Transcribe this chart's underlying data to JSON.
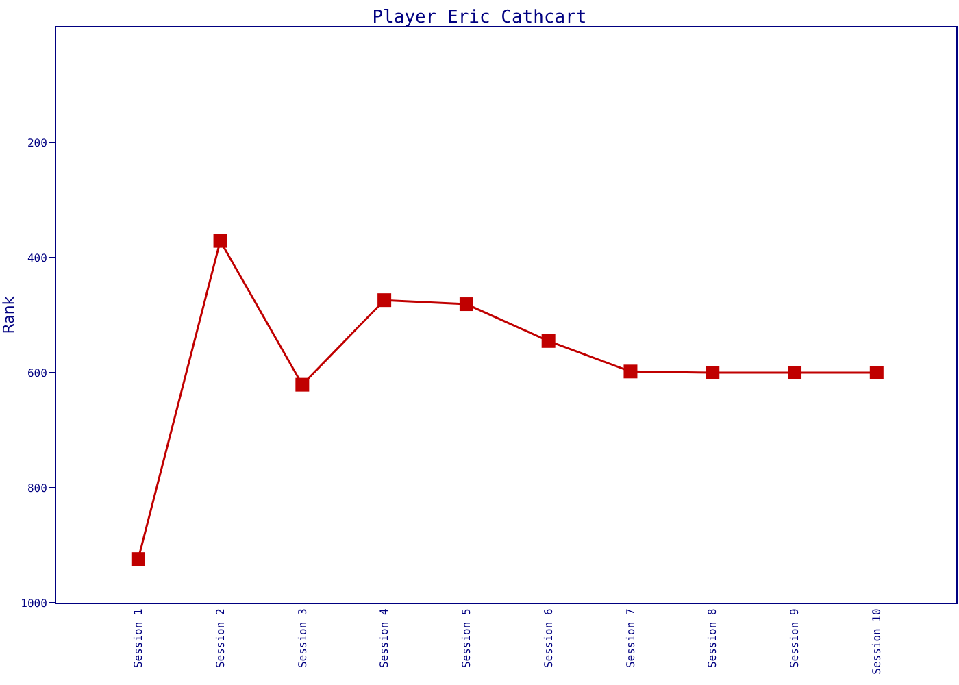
{
  "chart_data": {
    "type": "line",
    "title": "Player Eric Cathcart",
    "ylabel": "Rank",
    "categories": [
      "Session 1",
      "Session 2",
      "Session 3",
      "Session 4",
      "Session 5",
      "Session 6",
      "Session 7",
      "Session 8",
      "Session 9",
      "Session 10"
    ],
    "series": [
      {
        "color": "#c00000",
        "values": [
          924,
          371,
          621,
          474,
          481,
          545,
          598,
          600,
          600,
          600
        ]
      }
    ],
    "ylim": [
      1000,
      0
    ],
    "yticks": [
      200,
      400,
      600,
      800,
      1000
    ],
    "grid": false,
    "marker": "square",
    "line_style": "solid"
  }
}
